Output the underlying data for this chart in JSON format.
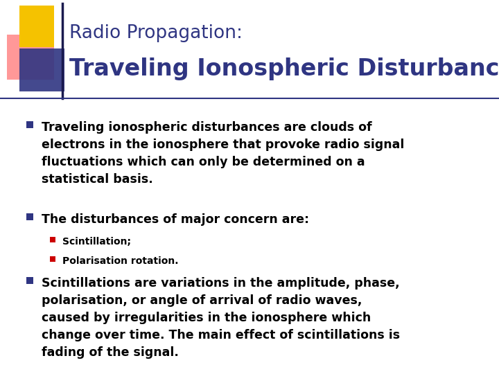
{
  "title_line1": "Radio Propagation:",
  "title_line2": "Traveling Ionospheric Disturbances",
  "title_line1_color": "#2F3582",
  "title_line2_color": "#2F3582",
  "bg_color": "#FFFFFF",
  "bullet_color": "#2F3582",
  "sub_bullet_color": "#CC0000",
  "body_text_color": "#000000",
  "separator_color": "#2F3582",
  "bullet1": "Traveling ionospheric disturbances are clouds of\nelectrons in the ionosphere that provoke radio signal\nfluctuations which can only be determined on a\nstatistical basis.",
  "bullet2": "The disturbances of major concern are:",
  "sub_bullet1": "Scintillation;",
  "sub_bullet2": "Polarisation rotation.",
  "bullet3": "Scintillations are variations in the amplitude, phase,\npolarisation, or angle of arrival of radio waves,\ncaused by irregularities in the ionosphere which\nchange over time. The main effect of scintillations is\nfading of the signal."
}
